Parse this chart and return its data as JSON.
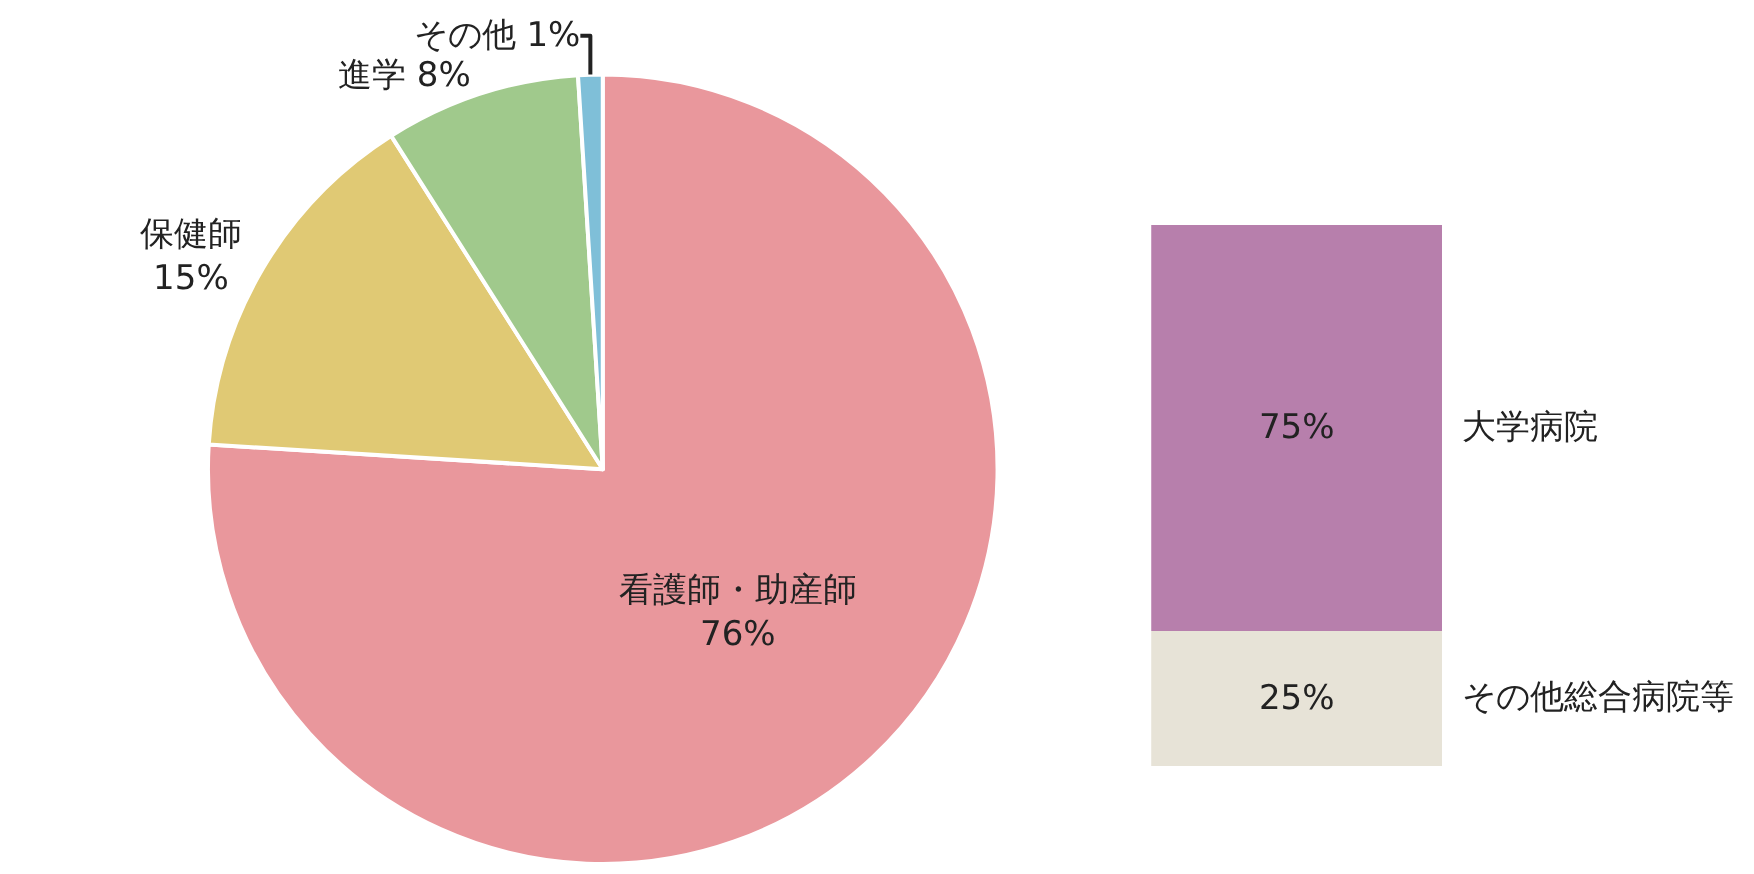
{
  "chart_data": [
    {
      "type": "pie",
      "categories": [
        "看護師・助産師",
        "保健師",
        "進学",
        "その他"
      ],
      "values": [
        76,
        15,
        8,
        1
      ],
      "colors": [
        "#e9979c",
        "#e0c974",
        "#a0c98c",
        "#7fbfd8"
      ],
      "value_labels": [
        "76%",
        "15%",
        "8%",
        "1%"
      ]
    },
    {
      "type": "bar",
      "stacked": true,
      "categories": [
        null
      ],
      "series": [
        {
          "name": "その他総合病院等",
          "color": "#e7e3d7",
          "values": [
            25
          ],
          "value_labels": [
            "25%"
          ]
        },
        {
          "name": "大学病院",
          "color": "#b77fac",
          "values": [
            75
          ],
          "value_labels": [
            "75%"
          ]
        }
      ]
    }
  ]
}
